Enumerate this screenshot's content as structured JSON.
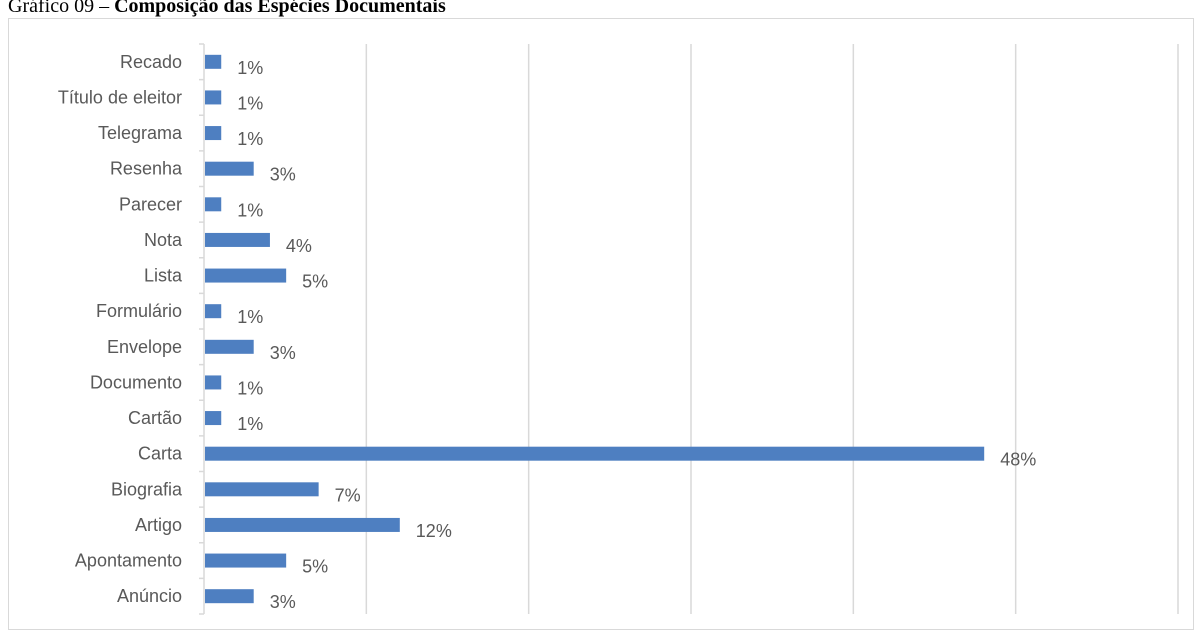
{
  "caption": {
    "prefix": "Gráfico 09 – ",
    "title": "Composição das Espécies Documentais"
  },
  "chart_data": {
    "type": "bar",
    "orientation": "horizontal",
    "categories": [
      "Recado",
      "Título de eleitor",
      "Telegrama",
      "Resenha",
      "Parecer",
      "Nota",
      "Lista",
      "Formulário",
      "Envelope",
      "Documento",
      "Cartão",
      "Carta",
      "Biografia",
      "Artigo",
      "Apontamento",
      "Anúncio"
    ],
    "values": [
      1,
      1,
      1,
      3,
      1,
      4,
      5,
      1,
      3,
      1,
      1,
      48,
      7,
      12,
      5,
      3
    ],
    "value_labels": [
      "1%",
      "1%",
      "1%",
      "3%",
      "1%",
      "4%",
      "5%",
      "1%",
      "3%",
      "1%",
      "1%",
      "48%",
      "7%",
      "12%",
      "5%",
      "3%"
    ],
    "xlim": [
      0,
      60
    ],
    "grid": true,
    "bar_color": "#4e7fc1",
    "grid_color": "#d9d9d9"
  }
}
